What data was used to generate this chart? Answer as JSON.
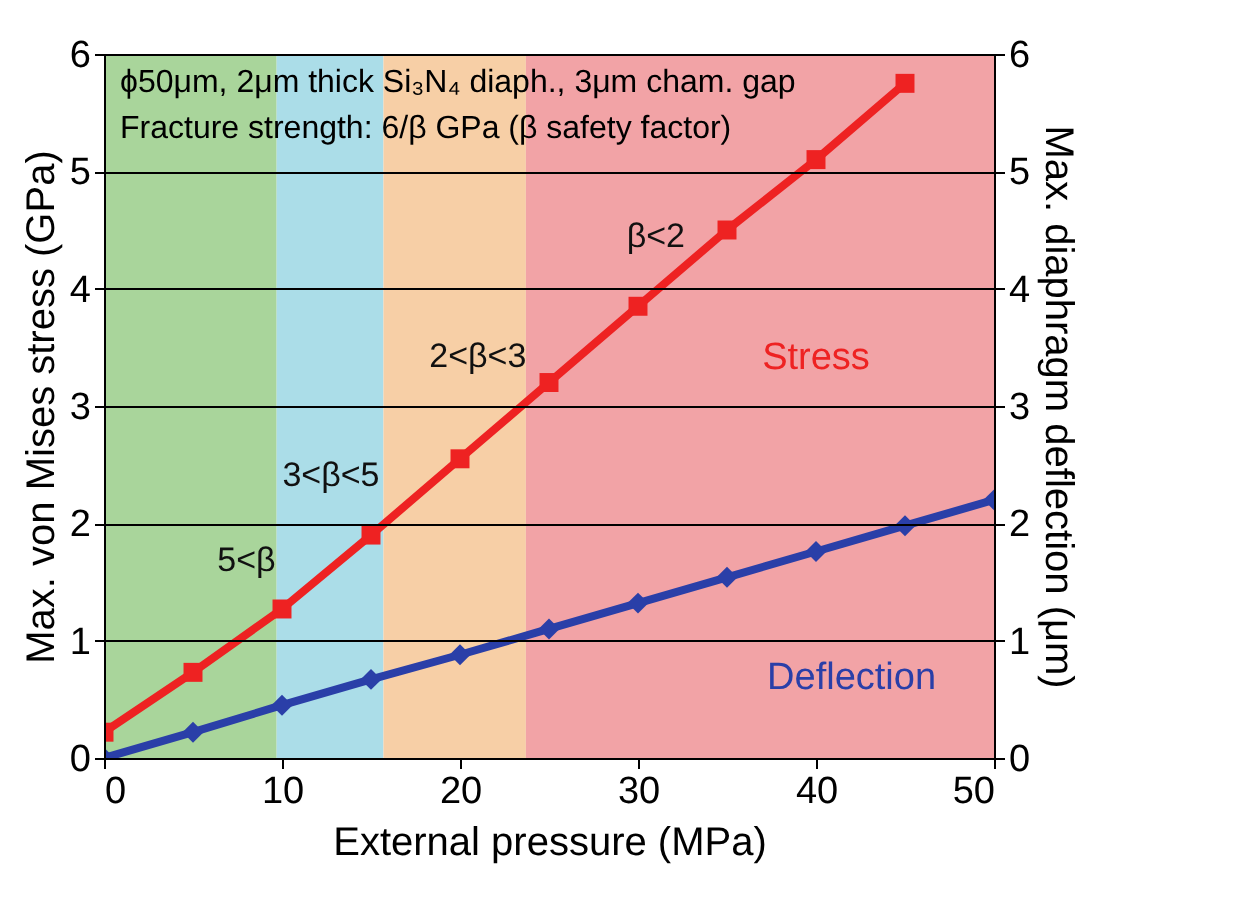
{
  "chart_data": {
    "type": "line",
    "xlabel": "External pressure (MPa)",
    "ylabel": "Max. von Mises stress (GPa)",
    "y2label": "Max. diaphragm deflection (μm)",
    "x": [
      0,
      5,
      10,
      15,
      20,
      25,
      30,
      35,
      40,
      45,
      50
    ],
    "series": [
      {
        "name": "Stress",
        "color": "#ee2222",
        "marker": "square",
        "values": [
          0.22,
          0.73,
          1.27,
          1.9,
          2.55,
          3.2,
          3.85,
          4.5,
          5.1,
          5.75,
          null
        ]
      },
      {
        "name": "Deflection",
        "color": "#2a3fa8",
        "marker": "diamond",
        "axis": "y2",
        "values": [
          0,
          0.22,
          0.45,
          0.67,
          0.88,
          1.1,
          1.32,
          1.54,
          1.76,
          1.98,
          2.2
        ]
      }
    ],
    "xlim": [
      0,
      50
    ],
    "xticks": [
      0,
      10,
      20,
      30,
      40,
      50
    ],
    "ylim": [
      0,
      6
    ],
    "yticks": [
      0,
      1,
      2,
      3,
      4,
      5,
      6
    ],
    "y2lim": [
      0,
      6
    ],
    "y2ticks": [
      0,
      1,
      2,
      3,
      4,
      5,
      6
    ],
    "grid": "y",
    "line_style": "solid",
    "bands": [
      {
        "axis": "x",
        "from": 0,
        "to": 9.7,
        "label": "5<β",
        "color": "#a9d59b"
      },
      {
        "axis": "x",
        "from": 9.7,
        "to": 15.7,
        "label": "3<β<5",
        "color": "#abdde8"
      },
      {
        "axis": "x",
        "from": 15.7,
        "to": 23.7,
        "label": "2<β<3",
        "color": "#f7cfa6"
      },
      {
        "axis": "x",
        "from": 23.7,
        "to": 50,
        "label": "β<2",
        "color": "#f2a3a6"
      }
    ],
    "annotations": [
      "ϕ50μm, 2μm thick Si₃N₄ diaph., 3μm cham. gap",
      "Fracture strength: 6/β GPa (β safety factor)"
    ]
  }
}
